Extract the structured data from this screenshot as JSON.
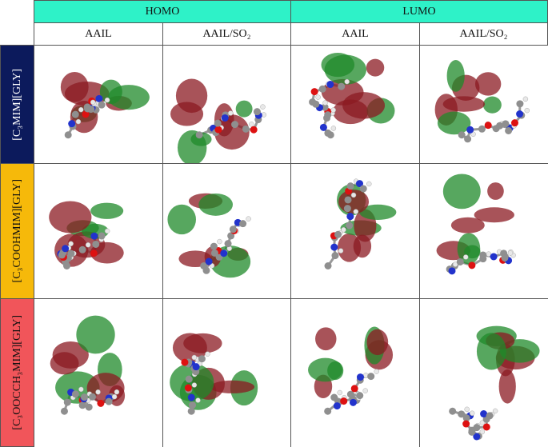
{
  "header": {
    "groups": [
      "HOMO",
      "LUMO"
    ],
    "columns": [
      "AAIL",
      "AAIL/SO₂",
      "AAIL",
      "AAIL/SO₂"
    ]
  },
  "rows": [
    "[C₃MIM][GLY]",
    "[C₃COOHMIM][GLY]",
    "[C₃OOCCH₃MIM][GLY]"
  ]
}
